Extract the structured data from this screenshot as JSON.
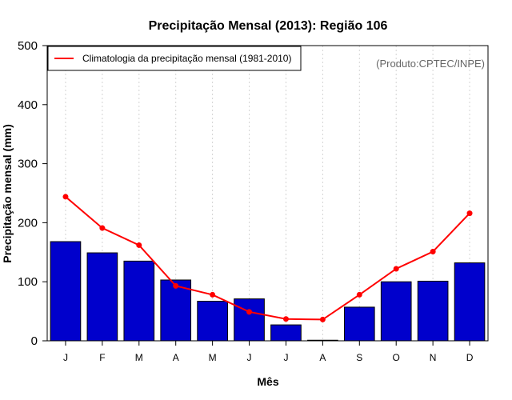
{
  "chart_data": {
    "type": "bar",
    "title": "Precipitação Mensal (2013): Região 106",
    "xlabel": "Mês",
    "ylabel": "Precipitação mensal (mm)",
    "ylim": [
      0,
      500
    ],
    "yticks": [
      0,
      100,
      200,
      300,
      400,
      500
    ],
    "categories": [
      "J",
      "F",
      "M",
      "A",
      "M",
      "J",
      "J",
      "A",
      "S",
      "O",
      "N",
      "D"
    ],
    "series": [
      {
        "name": "Precipitação mensal 2013",
        "type": "bar",
        "color": "#0000cc",
        "values": [
          168,
          149,
          135,
          103,
          67,
          71,
          27,
          1,
          57,
          100,
          101,
          132
        ]
      },
      {
        "name": "Climatologia da precipitação mensal (1981-2010)",
        "type": "line",
        "color": "#ff0000",
        "values": [
          244,
          191,
          162,
          93,
          78,
          49,
          37,
          36,
          78,
          122,
          151,
          216
        ]
      }
    ],
    "legend": {
      "position": "top-left",
      "label": "Climatologia da precipitação mensal (1981-2010)"
    },
    "annotation": "(Produto:CPTEC/INPE)",
    "grid": "vertical dotted"
  }
}
